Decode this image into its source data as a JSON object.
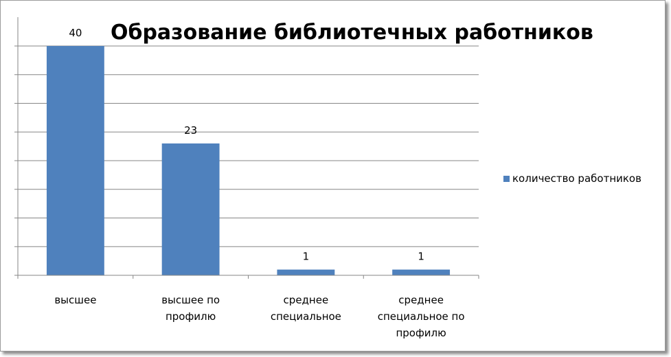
{
  "chart_data": {
    "type": "bar",
    "title": "Образование библиотечных работников",
    "categories": [
      [
        "высшее"
      ],
      [
        "высшее по",
        "профилю"
      ],
      [
        "среднее",
        "специальное"
      ],
      [
        "среднее",
        "специальное по",
        "профилю"
      ]
    ],
    "series": [
      {
        "name": "количество работников",
        "values": [
          40,
          23,
          1,
          1
        ],
        "color": "#4f81bd"
      }
    ],
    "ylim": [
      0,
      40
    ],
    "y_gridlines": 8,
    "y_tick_labels_shown": false,
    "grid": true,
    "legend_position": "right",
    "axis_color": "#868686",
    "grid_color": "#868686"
  }
}
